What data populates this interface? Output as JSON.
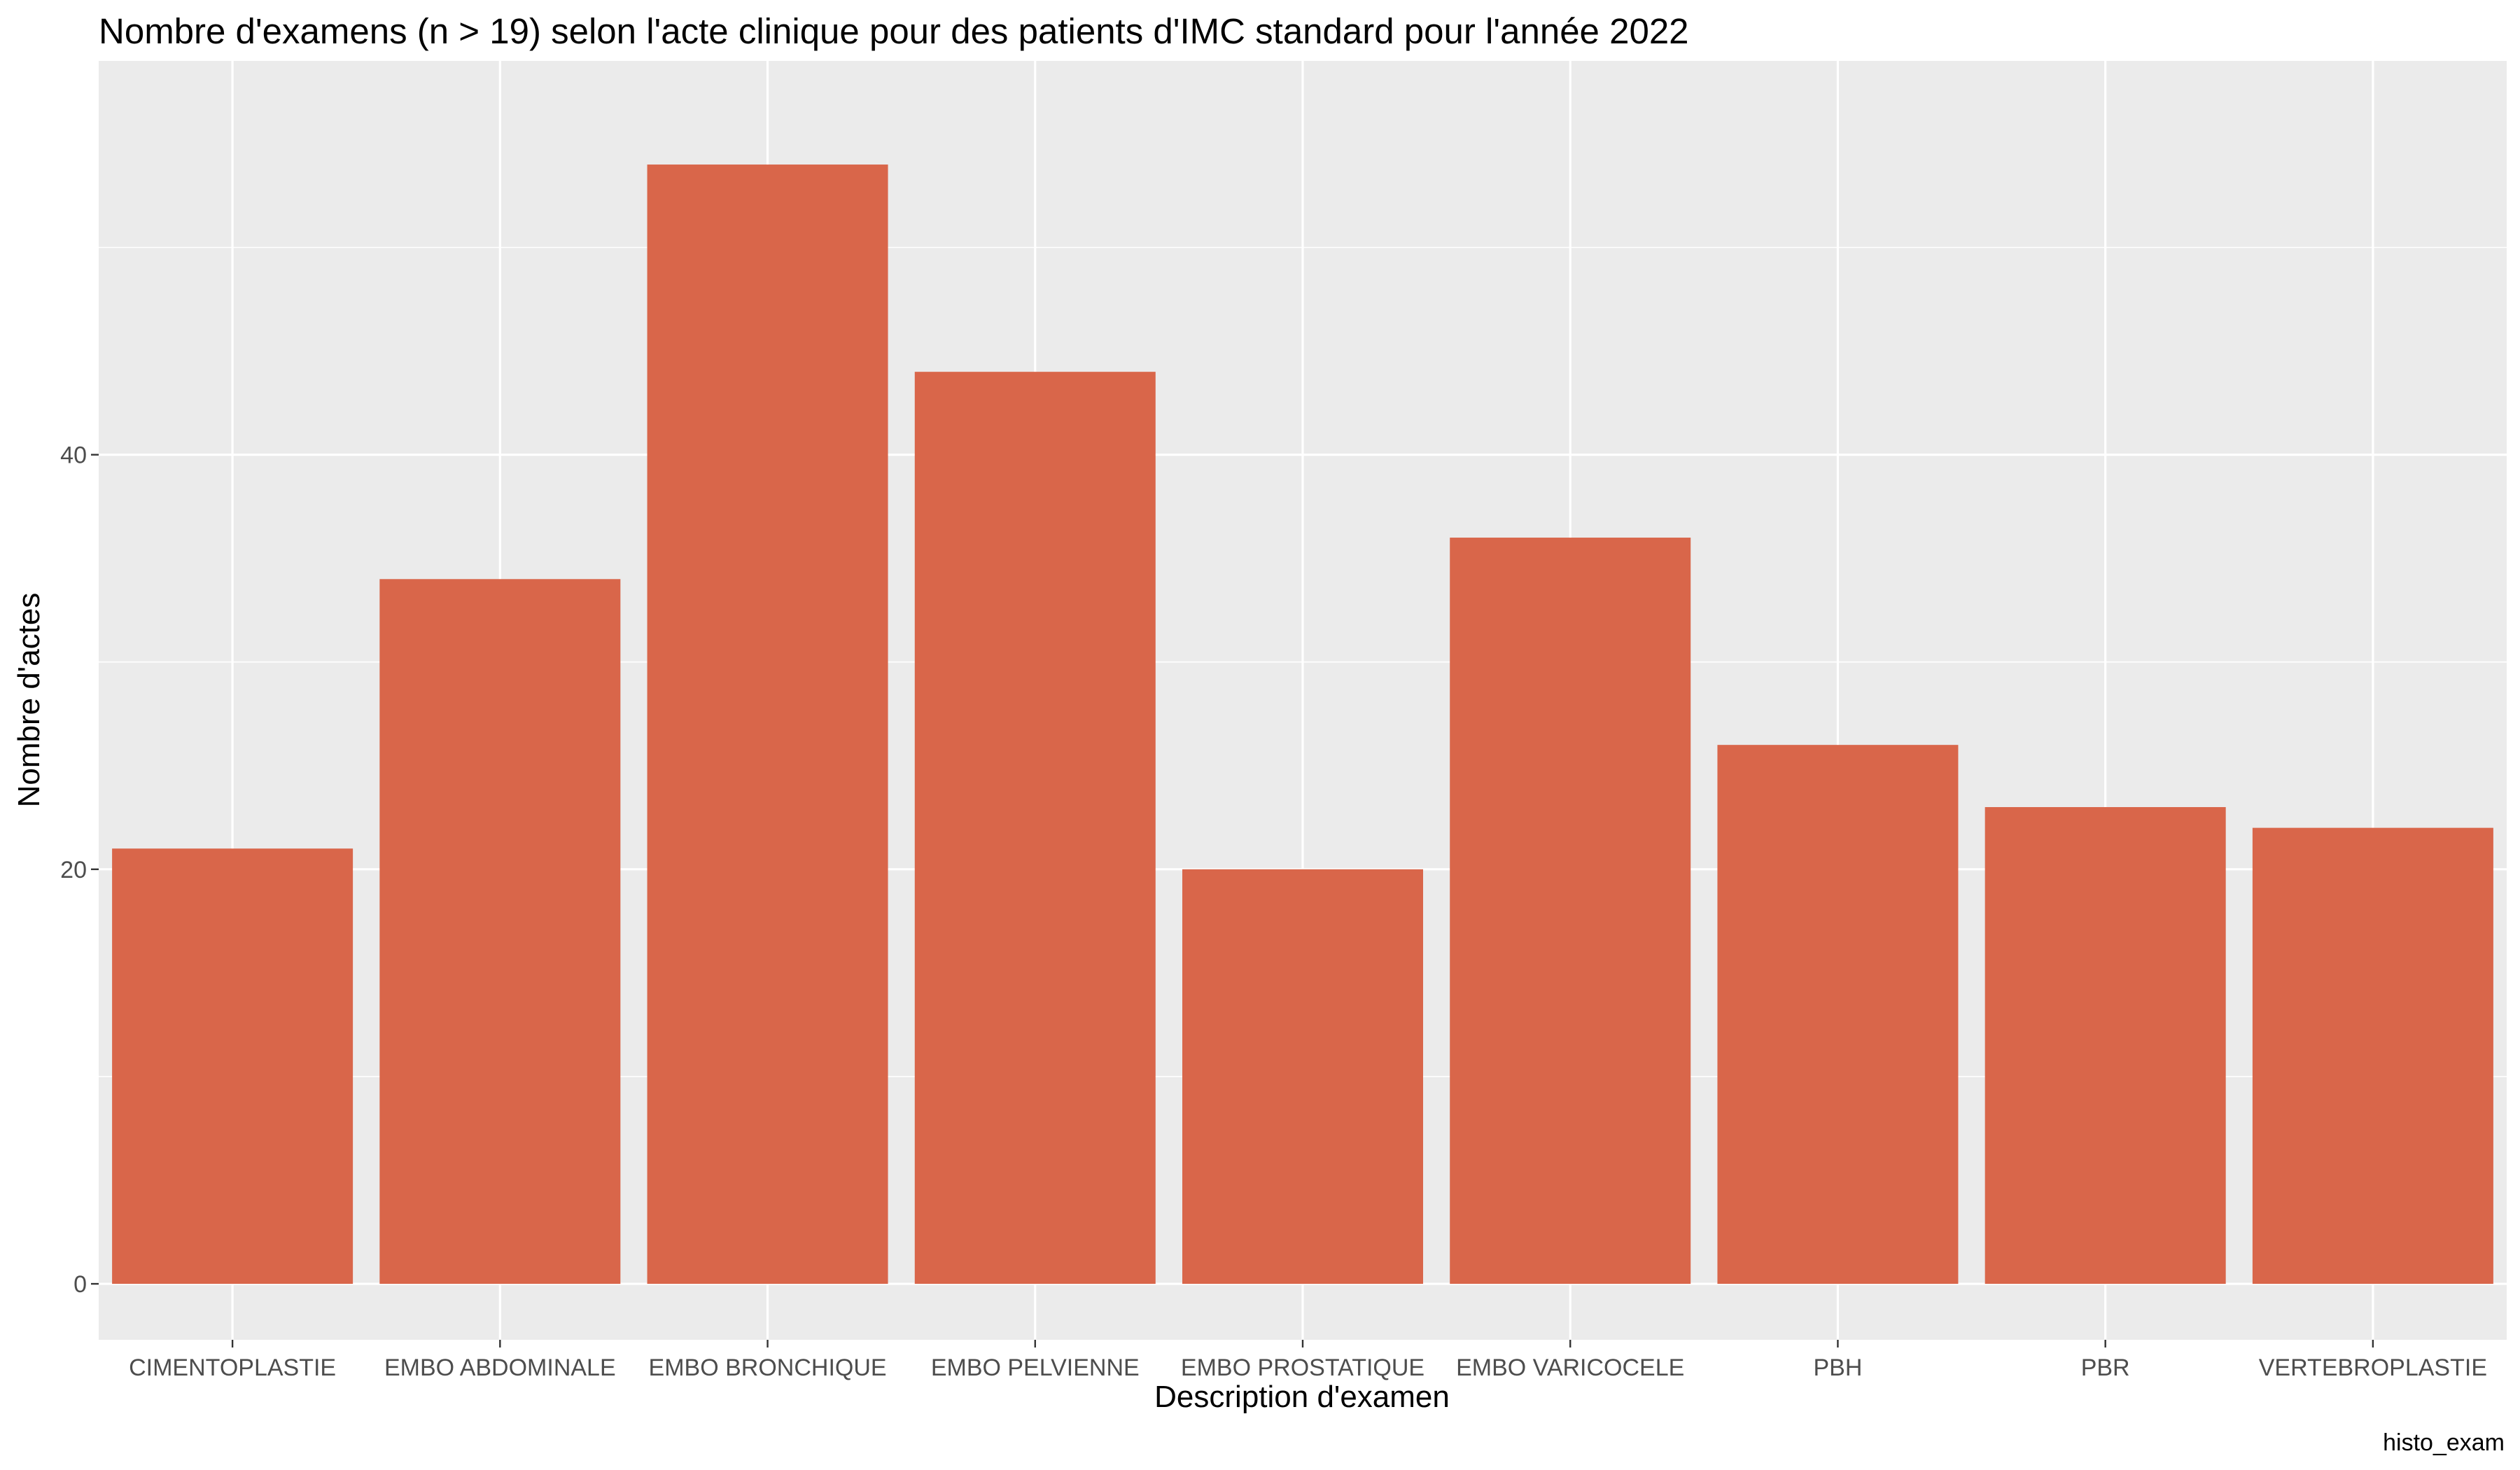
{
  "chart_data": {
    "type": "bar",
    "title": "Nombre d'examens (n > 19) selon l'acte clinique pour des patients d'IMC standard pour l'année 2022",
    "xlabel": "Description d'examen",
    "ylabel": "Nombre d'actes",
    "caption": "histo_exam",
    "categories": [
      "CIMENTOPLASTIE",
      "EMBO ABDOMINALE",
      "EMBO BRONCHIQUE",
      "EMBO PELVIENNE",
      "EMBO PROSTATIQUE",
      "EMBO VARICOCELE",
      "PBH",
      "PBR",
      "VERTEBROPLASTIE"
    ],
    "values": [
      21,
      34,
      54,
      44,
      20,
      36,
      26,
      23,
      22
    ],
    "y_ticks": [
      0,
      20,
      40
    ],
    "ylim": [
      -2.7,
      59
    ],
    "grid": true,
    "bar_color": "#d9664a"
  }
}
